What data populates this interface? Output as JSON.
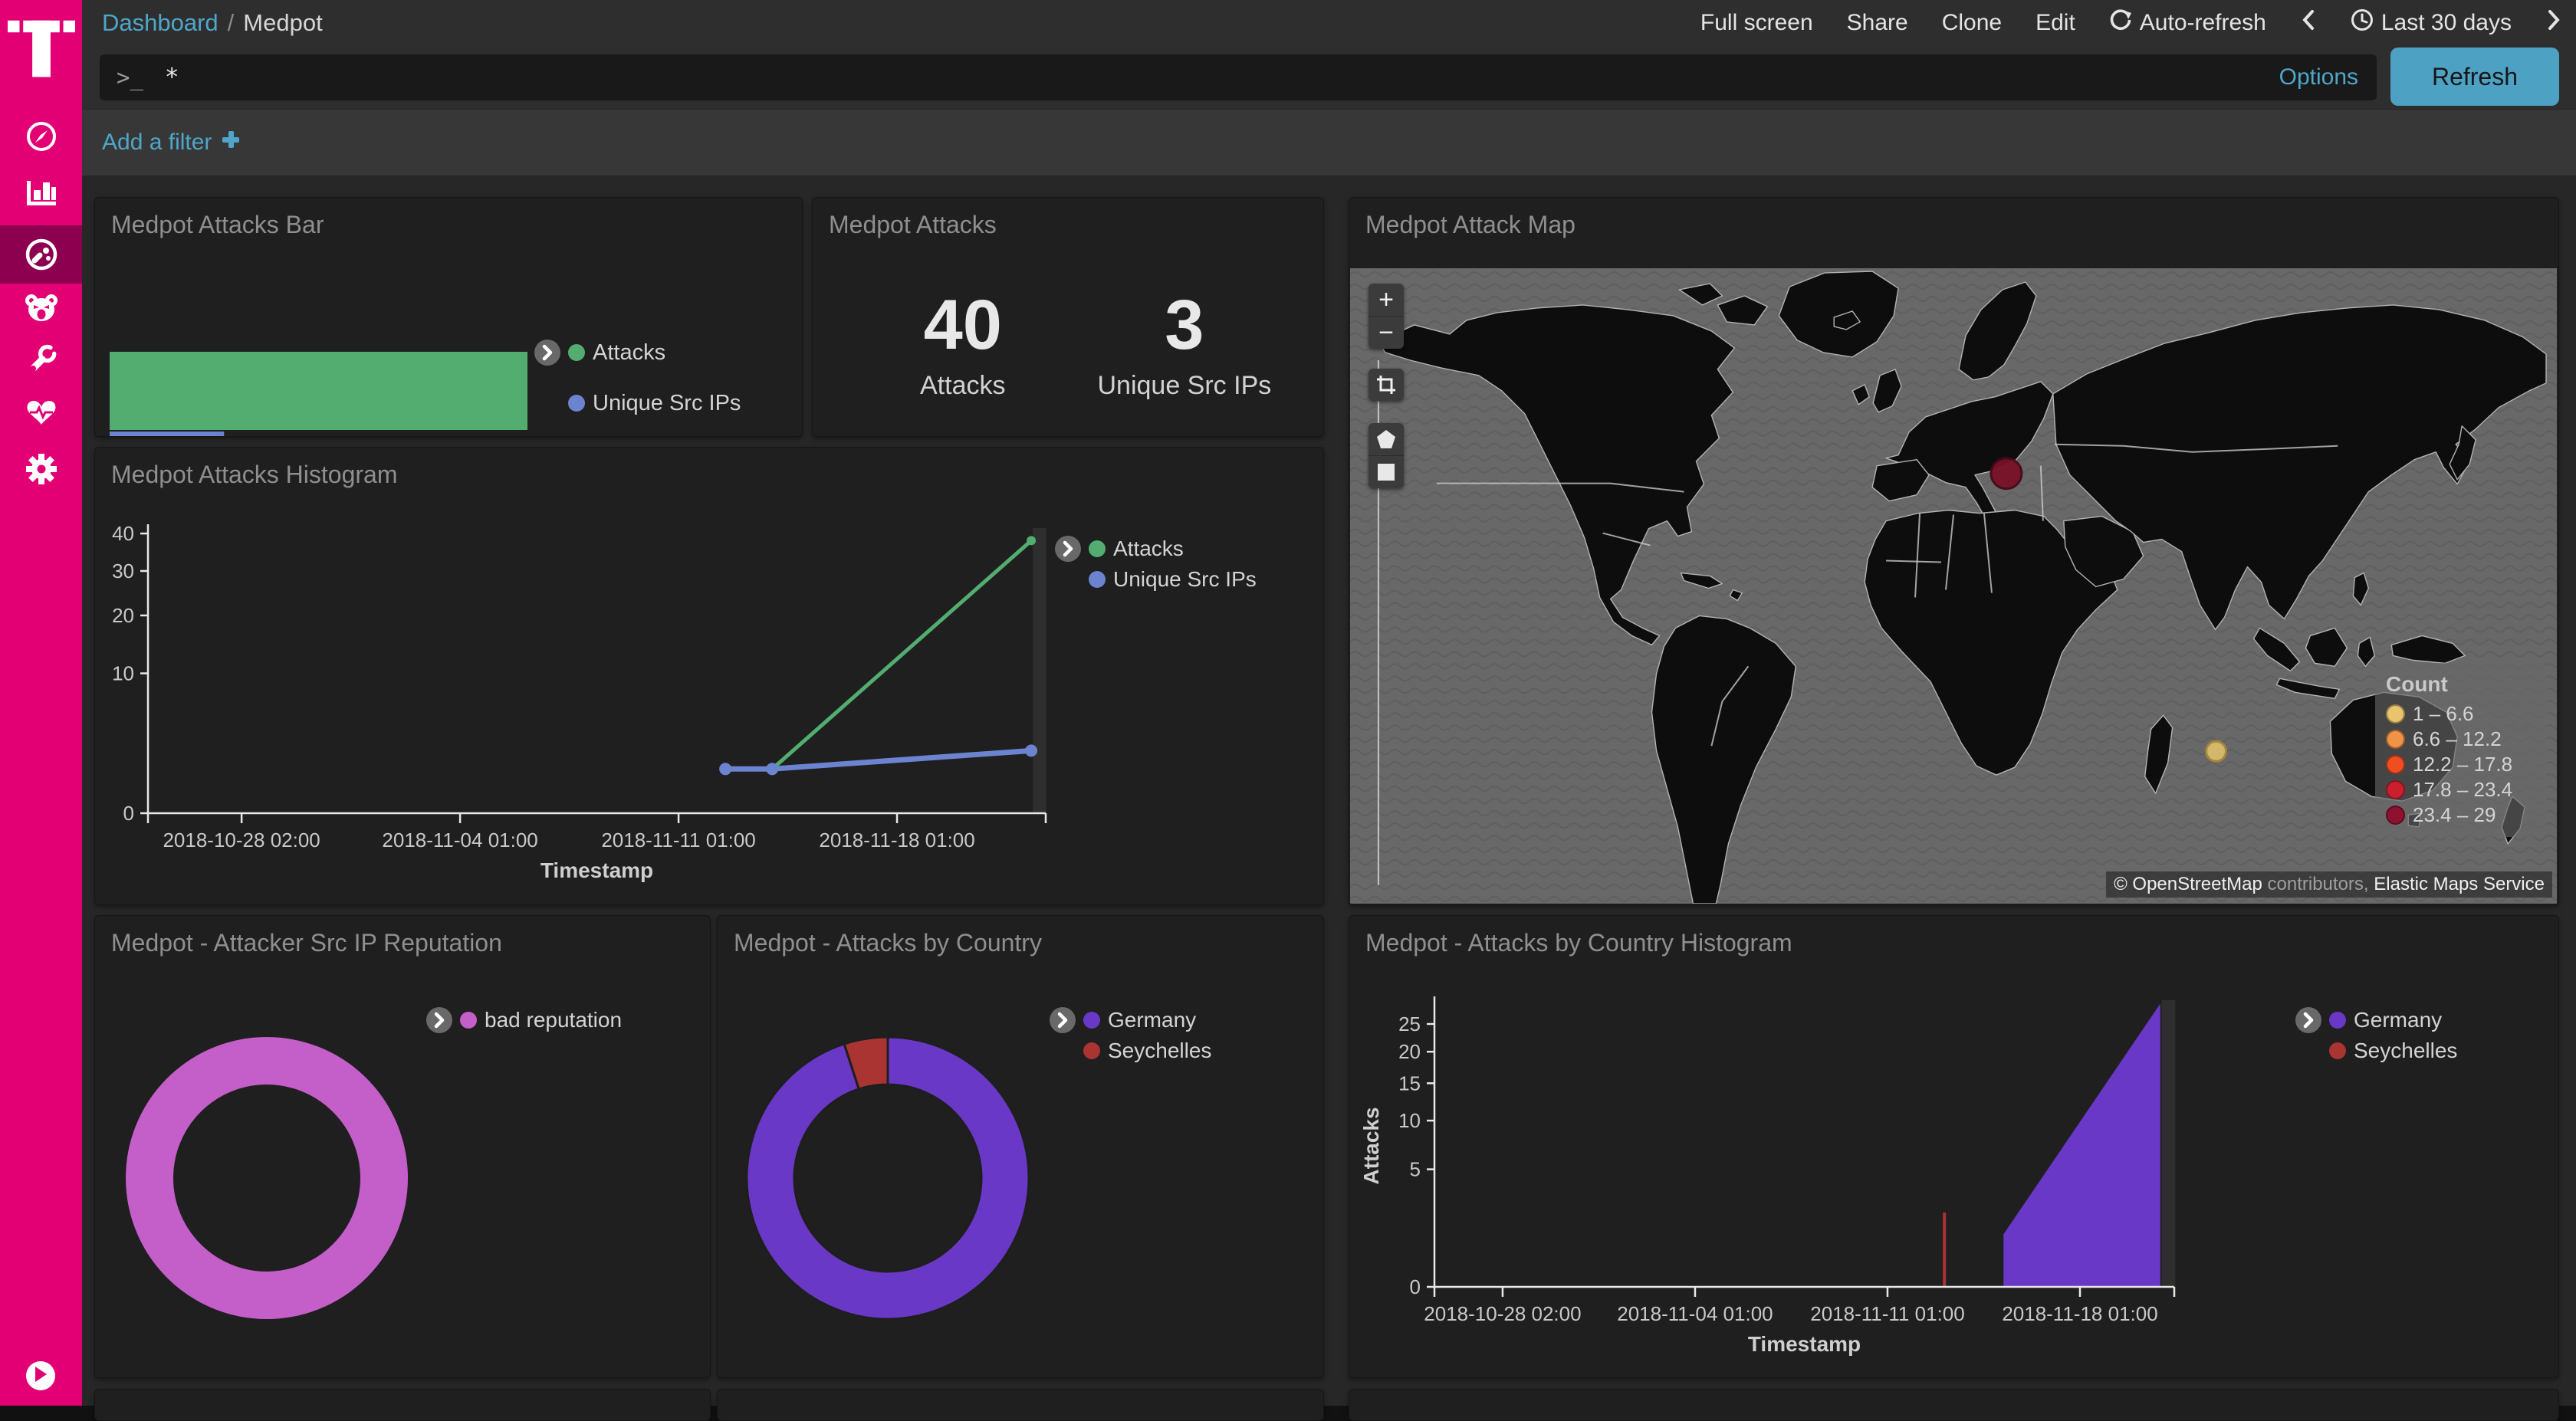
{
  "app": {
    "accent_color": "#4fa6c9",
    "sidebar_color": "#e20074",
    "sidebar_active_color": "#8c004f",
    "panel_bg": "#1f1f1f"
  },
  "sidebar": {
    "logo": "telekom-t-logo",
    "items": [
      {
        "id": "discover",
        "icon": "compass-icon",
        "active": false
      },
      {
        "id": "visualize",
        "icon": "bar-chart-icon",
        "active": false
      },
      {
        "id": "dashboard",
        "icon": "gauge-icon",
        "active": true
      },
      {
        "id": "tpot",
        "icon": "bear-icon",
        "active": false
      },
      {
        "id": "devtools",
        "icon": "wrench-icon",
        "active": false
      },
      {
        "id": "monitoring",
        "icon": "heartbeat-icon",
        "active": false
      },
      {
        "id": "management",
        "icon": "gear-icon",
        "active": false
      }
    ],
    "collapse_icon": "play-icon"
  },
  "topnav": {
    "breadcrumb": {
      "dashboard": "Dashboard",
      "sep": "/",
      "page": "Medpot"
    },
    "actions": {
      "fullscreen": "Full screen",
      "share": "Share",
      "clone": "Clone",
      "edit": "Edit",
      "autorefresh": "Auto-refresh",
      "timerange": "Last 30 days"
    }
  },
  "querybar": {
    "prompt_icon": ">_",
    "value": "*",
    "options_label": "Options",
    "refresh_label": "Refresh"
  },
  "filterbar": {
    "add_filter_label": "Add a filter"
  },
  "panels": {
    "attacks_bar": {
      "title": "Medpot Attacks Bar",
      "legend": [
        {
          "label": "Attacks"
        },
        {
          "label": "Unique Src IPs"
        }
      ]
    },
    "attacks_metric": {
      "title": "Medpot Attacks",
      "metrics": [
        {
          "value": "40",
          "label": "Attacks"
        },
        {
          "value": "3",
          "label": "Unique Src IPs"
        }
      ]
    },
    "attack_map": {
      "title": "Medpot Attack Map",
      "legend_title": "Count",
      "legend_buckets": [
        {
          "range": "1 – 6.6",
          "color": "#e7c46d"
        },
        {
          "range": "6.6 – 12.2",
          "color": "#ef9445"
        },
        {
          "range": "12.2 – 17.8",
          "color": "#f04d23"
        },
        {
          "range": "17.8 – 23.4",
          "color": "#cc1f2e"
        },
        {
          "range": "23.4 – 29",
          "color": "#8e1230"
        }
      ],
      "markers": [
        {
          "name": "germany-marker",
          "color": "#7a1127",
          "stroke": "#440a19",
          "x": 857,
          "y": 268,
          "r": 20
        },
        {
          "name": "seychelles-marker",
          "color": "#d9bd6d",
          "stroke": "#a8893a",
          "x": 1131,
          "y": 631,
          "r": 13
        }
      ],
      "attribution": {
        "osm": "© OpenStreetMap",
        "contributors": " contributors, ",
        "elastic": "Elastic Maps Service"
      }
    },
    "attacks_histogram": {
      "title": "Medpot Attacks Histogram",
      "legend": [
        {
          "label": "Attacks"
        },
        {
          "label": "Unique Src IPs"
        }
      ]
    },
    "reputation_donut": {
      "title": "Medpot - Attacker Src IP Reputation",
      "legend": [
        {
          "label": "bad reputation"
        }
      ]
    },
    "country_donut": {
      "title": "Medpot - Attacks by Country",
      "legend": [
        {
          "label": "Germany"
        },
        {
          "label": "Seychelles"
        }
      ]
    },
    "country_histogram": {
      "title": "Medpot - Attacks by Country Histogram",
      "legend": [
        {
          "label": "Germany"
        },
        {
          "label": "Seychelles"
        }
      ]
    }
  },
  "chart_data": [
    {
      "id": "attacks_bar",
      "type": "bar",
      "orientation": "horizontal",
      "categories": [
        "Attacks",
        "Unique Src IPs"
      ],
      "values": [
        40,
        3
      ],
      "colors": [
        "#53ad71",
        "#6c83cf"
      ],
      "x_scale": "sqrt",
      "xlim": [
        0,
        40
      ],
      "xticks": [
        10,
        20,
        30
      ],
      "legend_position": "right",
      "grid": false
    },
    {
      "id": "attacks_histogram",
      "type": "line",
      "xlabel": "Timestamp",
      "ylabel": "",
      "y_scale": "sqrt",
      "ylim": [
        0,
        42
      ],
      "yticks": [
        0,
        10,
        20,
        30,
        40
      ],
      "x_range": [
        "2018-10-25 02:00",
        "2018-11-23 00:00"
      ],
      "xticks": [
        {
          "day": 3,
          "label": "2018-10-28 02:00"
        },
        {
          "day": 10,
          "label": "2018-11-04 01:00"
        },
        {
          "day": 17,
          "label": "2018-11-11 01:00"
        },
        {
          "day": 24,
          "label": "2018-11-18 01:00"
        }
      ],
      "series": [
        {
          "name": "Attacks",
          "color": "#53ad71",
          "stroke_width": 5,
          "points": [
            {
              "day": 20,
              "value": 1
            },
            {
              "day": 28.3,
              "value": 38
            }
          ]
        },
        {
          "name": "Unique Src IPs",
          "color": "#6c83cf",
          "stroke_width": 7,
          "points": [
            {
              "day": 18.5,
              "value": 1
            },
            {
              "day": 20,
              "value": 1
            },
            {
              "day": 28.3,
              "value": 2
            }
          ]
        }
      ],
      "end_band_days": [
        28.35,
        28.78
      ],
      "legend_position": "right"
    },
    {
      "id": "reputation_donut",
      "type": "pie",
      "donut": true,
      "categories": [
        "bad reputation"
      ],
      "values": [
        40
      ],
      "colors": [
        "#c45ec9"
      ]
    },
    {
      "id": "country_donut",
      "type": "pie",
      "donut": true,
      "categories": [
        "Germany",
        "Seychelles"
      ],
      "values": [
        38,
        2
      ],
      "colors": [
        "#6a38c6",
        "#a93432"
      ]
    },
    {
      "id": "country_histogram",
      "type": "area",
      "xlabel": "Timestamp",
      "ylabel": "Attacks",
      "y_scale": "sqrt",
      "ylim": [
        0,
        28.6
      ],
      "yticks": [
        0,
        5,
        10,
        15,
        20,
        25
      ],
      "xticks": [
        {
          "day": 2.48,
          "label": "2018-10-28 02:00"
        },
        {
          "day": 9.48,
          "label": "2018-11-04 01:00"
        },
        {
          "day": 16.48,
          "label": "2018-11-11 01:00"
        },
        {
          "day": 23.48,
          "label": "2018-11-18 01:00"
        }
      ],
      "series": [
        {
          "name": "Germany",
          "color": "#6a38c6",
          "points": [
            {
              "day": 20.7,
              "value": 1
            },
            {
              "day": 26.4,
              "value": 29
            }
          ]
        },
        {
          "name": "Seychelles",
          "color": "#a93432",
          "spike": {
            "day": 18.55,
            "value": 2
          }
        }
      ],
      "end_band_days": [
        26.45,
        26.95
      ],
      "legend_position": "right"
    }
  ]
}
